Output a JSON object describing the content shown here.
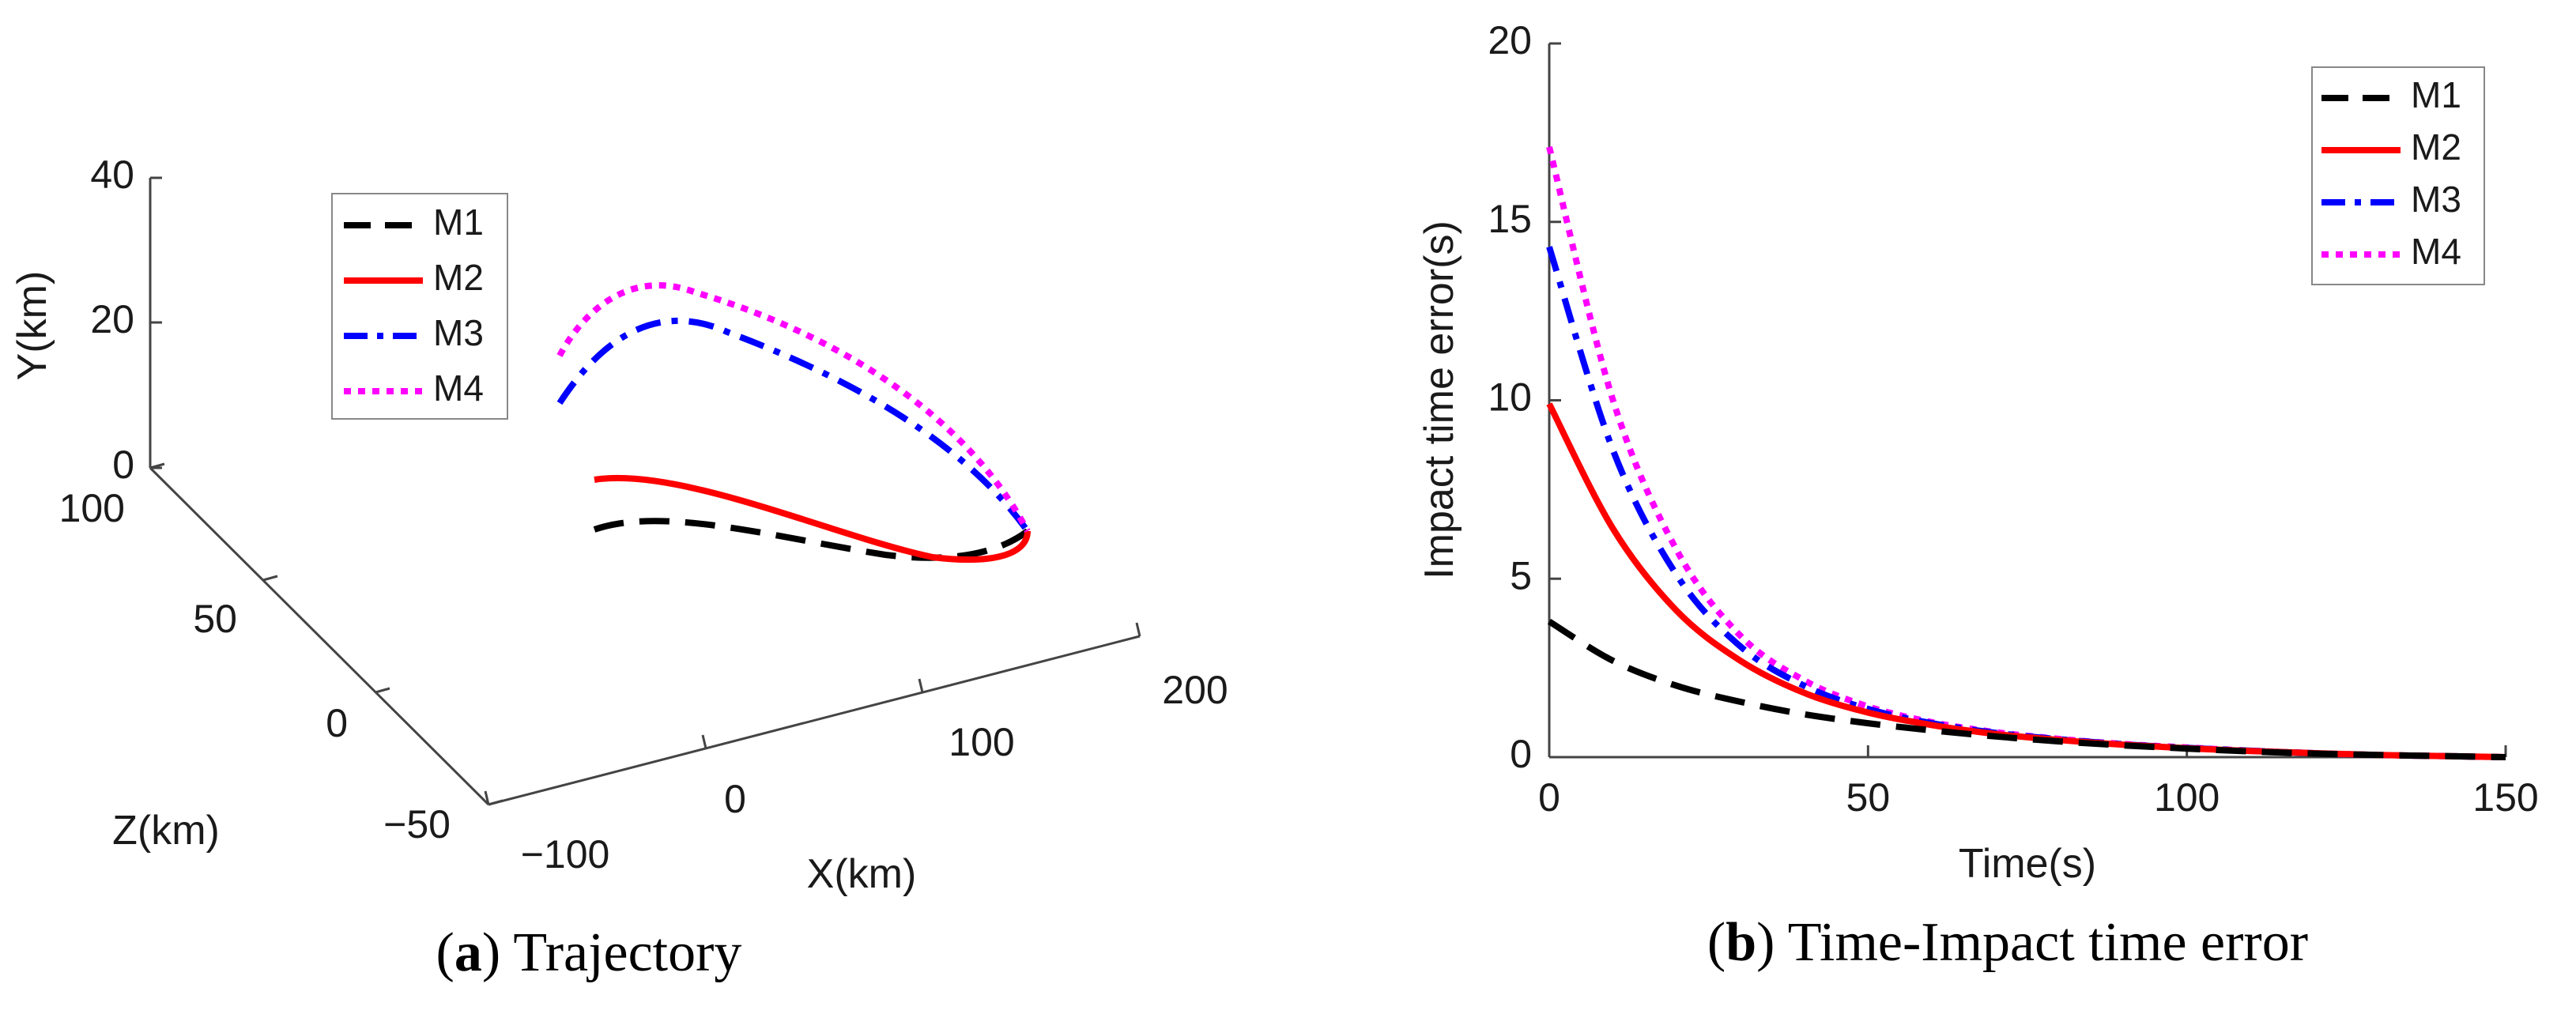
{
  "chart_data": [
    {
      "panel": "a",
      "type": "line3d",
      "caption_label": "a",
      "caption_text": ") Trajectory",
      "xlabel": "X(km)",
      "ylabel": "Y(km)",
      "zlabel": "Z(km)",
      "xlim": [
        -100,
        200
      ],
      "ylim": [
        0,
        40
      ],
      "zlim": [
        -50,
        100
      ],
      "xticks": [
        "−100",
        "0",
        "100",
        "200"
      ],
      "yticks": [
        "0",
        "20",
        "40"
      ],
      "zticks": [
        "−50",
        "0",
        "50",
        "100"
      ],
      "legend_position": "top-left",
      "series": [
        {
          "name": "M1",
          "color": "#000000",
          "style": "dashed"
        },
        {
          "name": "M2",
          "color": "#ff0000",
          "style": "solid"
        },
        {
          "name": "M3",
          "color": "#0000ff",
          "style": "dashdot"
        },
        {
          "name": "M4",
          "color": "#ff00ff",
          "style": "dotted"
        }
      ]
    },
    {
      "panel": "b",
      "type": "line",
      "caption_label": "b",
      "caption_text": ") Time-Impact time error",
      "xlabel": "Time(s)",
      "ylabel": "Impact time error(s)",
      "xlim": [
        0,
        150
      ],
      "ylim": [
        0,
        20
      ],
      "xticks": [
        0,
        50,
        100,
        150
      ],
      "yticks": [
        0,
        5,
        10,
        15,
        20
      ],
      "legend_position": "top-right",
      "series": [
        {
          "name": "M1",
          "color": "#000000",
          "style": "dashed",
          "x": [
            0,
            10,
            20,
            30,
            40,
            50,
            60,
            70,
            80,
            90,
            100,
            110,
            120,
            130,
            140,
            150
          ],
          "y": [
            3.8,
            2.7,
            2.0,
            1.55,
            1.2,
            0.95,
            0.75,
            0.58,
            0.44,
            0.33,
            0.24,
            0.16,
            0.1,
            0.06,
            0.03,
            0.0
          ]
        },
        {
          "name": "M2",
          "color": "#ff0000",
          "style": "solid",
          "x": [
            0,
            10,
            20,
            30,
            40,
            50,
            60,
            70,
            80,
            90,
            100,
            110,
            120,
            130,
            140,
            150
          ],
          "y": [
            9.9,
            6.4,
            4.1,
            2.7,
            1.8,
            1.25,
            0.9,
            0.65,
            0.48,
            0.35,
            0.25,
            0.17,
            0.11,
            0.06,
            0.03,
            0.0
          ]
        },
        {
          "name": "M3",
          "color": "#0000ff",
          "style": "dashdot",
          "x": [
            0,
            10,
            20,
            30,
            40,
            50,
            60,
            70,
            80,
            90,
            100,
            110,
            120,
            130,
            140,
            150
          ],
          "y": [
            14.3,
            8.6,
            5.1,
            3.1,
            2.0,
            1.35,
            0.95,
            0.68,
            0.5,
            0.36,
            0.26,
            0.18,
            0.11,
            0.06,
            0.03,
            0.0
          ]
        },
        {
          "name": "M4",
          "color": "#ff00ff",
          "style": "dotted",
          "x": [
            0,
            10,
            20,
            30,
            40,
            50,
            60,
            70,
            80,
            90,
            100,
            110,
            120,
            130,
            140,
            150
          ],
          "y": [
            17.1,
            10.0,
            5.8,
            3.4,
            2.15,
            1.42,
            0.98,
            0.7,
            0.51,
            0.37,
            0.27,
            0.18,
            0.11,
            0.06,
            0.03,
            0.0
          ]
        }
      ]
    }
  ]
}
